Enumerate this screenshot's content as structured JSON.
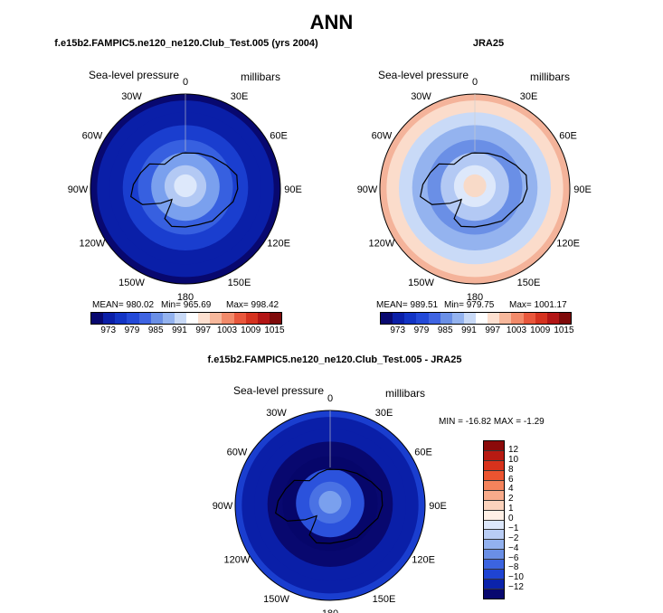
{
  "title": "ANN",
  "panels": [
    {
      "id": "model",
      "title": "f.e15b2.FAMPIC5.ne120_ne120.Club_Test.005 (yrs 2004)",
      "variable": "Sea-level pressure",
      "units": "millibars",
      "mean": "MEAN= 980.02",
      "min": "Min= 965.69",
      "max": "Max= 998.42",
      "fill_colors": [
        "#ffffff",
        "#08086f",
        "#0a1fa8",
        "#0a1fa8",
        "#1a3ecf",
        "#3760e0",
        "#7aa0ee",
        "#b3c9f4",
        "#dde8fb",
        "#fbe1d0"
      ]
    },
    {
      "id": "obs",
      "title": "JRA25",
      "variable": "Sea-level pressure",
      "units": "millibars",
      "mean": "MEAN= 989.51",
      "min": "Min= 979.75",
      "max": "Max= 1001.17",
      "fill_colors": [
        "#ffffff",
        "#f4b39a",
        "#fbdccb",
        "#c9daf7",
        "#94b3ef",
        "#6a8fe6",
        "#b3c9f4",
        "#dde8fb",
        "#f8dac8",
        "#f6c4ac"
      ]
    },
    {
      "id": "diff",
      "title": "f.e15b2.FAMPIC5.ne120_ne120.Club_Test.005 - JRA25",
      "variable": "Sea-level pressure",
      "units": "millibars",
      "min_max": "MIN = -16.82 MAX = -1.29",
      "fill_colors": [
        "#ffffff",
        "#1a3ecf",
        "#0a1fa8",
        "#0a1fa8",
        "#08086f",
        "#06066a",
        "#2b52dc",
        "#4a72e4",
        "#7aa0ee",
        "#3760e0"
      ]
    }
  ],
  "lon_labels": [
    "0",
    "30E",
    "60E",
    "90E",
    "120E",
    "150E",
    "180",
    "150W",
    "120W",
    "90W",
    "60W",
    "30W"
  ],
  "colorbar_abs": {
    "colors": [
      "#08086f",
      "#0a1fa8",
      "#1234c5",
      "#2349d8",
      "#3f64e2",
      "#6a8fe6",
      "#94b3ef",
      "#c9daf7",
      "#ffffff",
      "#fde0d0",
      "#f7b89c",
      "#f28a6a",
      "#e9573c",
      "#d5321f",
      "#b31515",
      "#7f0a0a"
    ],
    "ticks": [
      "973",
      "979",
      "985",
      "991",
      "997",
      "1003",
      "1009",
      "1015"
    ]
  },
  "colorbar_diff": {
    "colors": [
      "#8b0a0a",
      "#b81a12",
      "#d8321c",
      "#ec5430",
      "#f4835c",
      "#f8ab8b",
      "#fbd3bd",
      "#fff0e6",
      "#dce7fb",
      "#b9cdf5",
      "#92b1ef",
      "#6a8fe6",
      "#3c64e0",
      "#1f44d3",
      "#0b23ab",
      "#08086f"
    ],
    "ticks": [
      "12",
      "10",
      "8",
      "6",
      "4",
      "2",
      "1",
      "0",
      "−1",
      "−2",
      "−4",
      "−6",
      "−8",
      "−10",
      "−12"
    ]
  }
}
